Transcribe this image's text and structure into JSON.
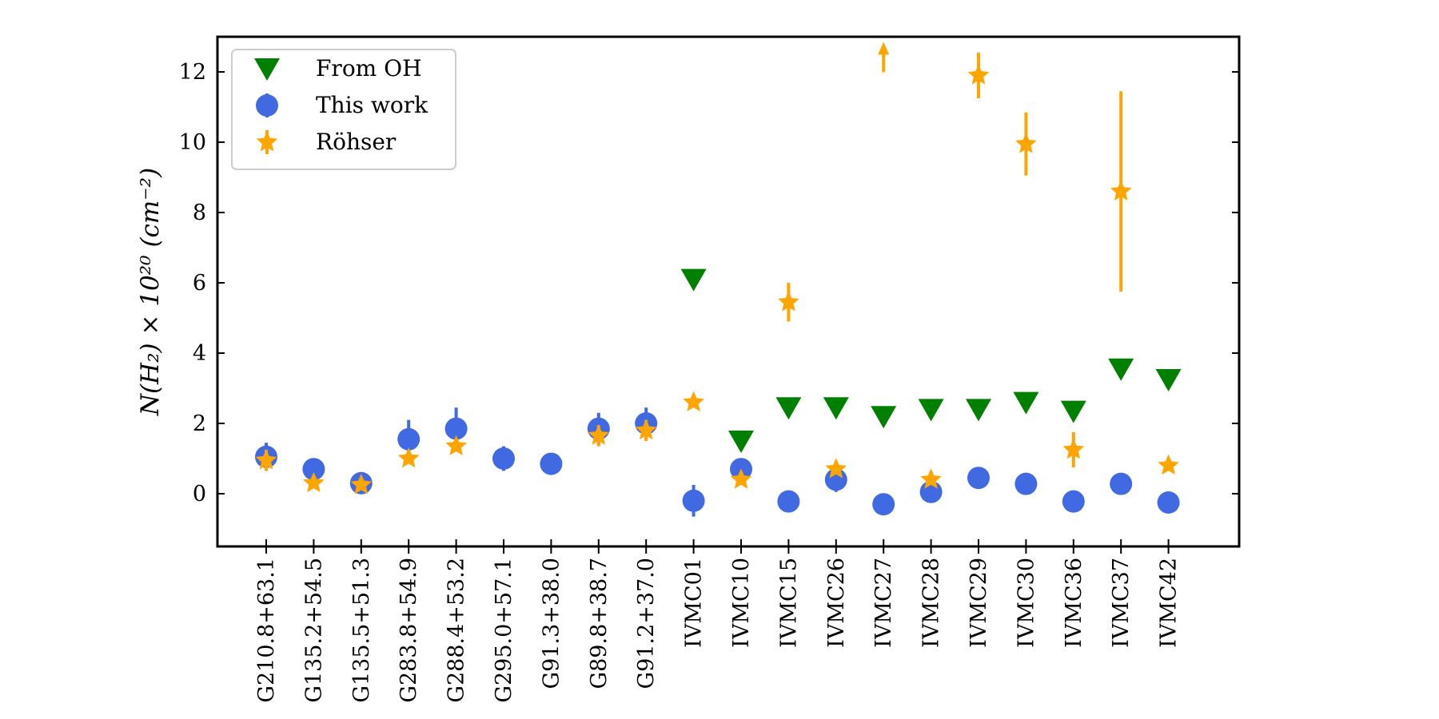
{
  "chart_data": {
    "type": "scatter",
    "title": "",
    "xlabel": "",
    "ylabel": "N(H₂) × 10²⁰ (cm⁻²)",
    "ylim": [
      -1.5,
      13
    ],
    "yticks": [
      0,
      2,
      4,
      6,
      8,
      10,
      12
    ],
    "grid": false,
    "legend_position": "top-left",
    "categories": [
      "G210.8+63.1",
      "G135.2+54.5",
      "G135.5+51.3",
      "G283.8+54.9",
      "G288.4+53.2",
      "G295.0+57.1",
      "G91.3+38.0",
      "G89.8+38.7",
      "G91.2+37.0",
      "IVMC01",
      "IVMC10",
      "IVMC15",
      "IVMC26",
      "IVMC27",
      "IVMC28",
      "IVMC29",
      "IVMC30",
      "IVMC36",
      "IVMC37",
      "IVMC42"
    ],
    "series": [
      {
        "name": "From OH",
        "marker": "triangle-down",
        "color": "#008000",
        "values": [
          null,
          null,
          null,
          null,
          null,
          null,
          null,
          null,
          null,
          6.1,
          1.5,
          2.45,
          2.45,
          2.2,
          2.4,
          2.4,
          2.6,
          2.35,
          3.55,
          3.25
        ]
      },
      {
        "name": "This work",
        "marker": "circle",
        "color": "#4169E1",
        "values": [
          1.05,
          0.7,
          0.3,
          1.55,
          1.85,
          1.0,
          0.85,
          1.85,
          2.0,
          -0.2,
          0.7,
          -0.22,
          0.4,
          -0.3,
          0.05,
          0.45,
          0.28,
          -0.22,
          0.28,
          -0.25
        ],
        "errors": [
          0.4,
          0.3,
          0.12,
          0.55,
          0.6,
          0.35,
          0.0,
          0.45,
          0.45,
          0.45,
          0.3,
          0.0,
          0.35,
          0.3,
          0.2,
          0.25,
          0.0,
          0.0,
          0.0,
          0.0
        ]
      },
      {
        "name": "Röhser",
        "marker": "star",
        "color": "#FFA500",
        "values": [
          0.95,
          0.3,
          0.25,
          1.0,
          1.35,
          null,
          null,
          1.65,
          1.8,
          2.6,
          0.4,
          5.45,
          0.7,
          12.4,
          0.4,
          11.9,
          9.95,
          1.25,
          8.6,
          0.8
        ],
        "errors": [
          0.3,
          0.0,
          0.0,
          0.0,
          0.0,
          null,
          null,
          0.3,
          0.3,
          0.0,
          0.0,
          0.55,
          0.0,
          0.0,
          0.0,
          0.65,
          0.9,
          0.5,
          2.85,
          0.0
        ],
        "lower_limit": [
          false,
          false,
          false,
          false,
          false,
          false,
          false,
          false,
          false,
          false,
          false,
          false,
          false,
          true,
          false,
          false,
          false,
          false,
          false,
          false
        ]
      }
    ]
  }
}
